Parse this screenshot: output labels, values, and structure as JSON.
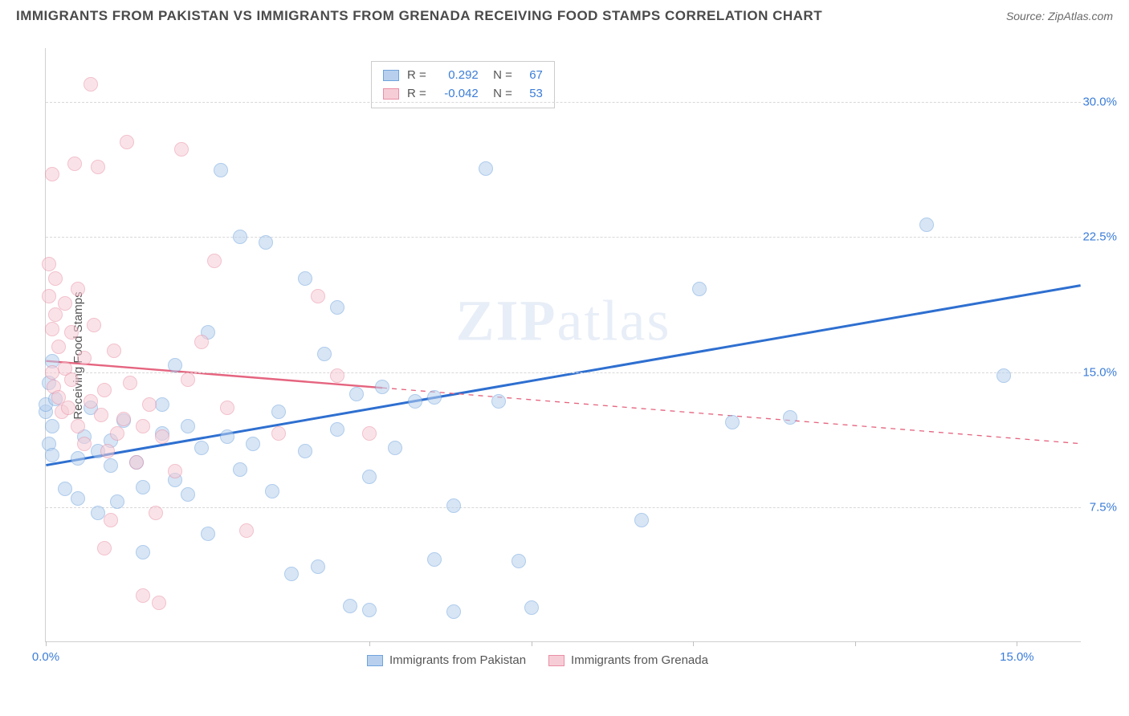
{
  "header": {
    "title": "IMMIGRANTS FROM PAKISTAN VS IMMIGRANTS FROM GRENADA RECEIVING FOOD STAMPS CORRELATION CHART",
    "source_prefix": "Source: ",
    "source_name": "ZipAtlas.com"
  },
  "watermark": {
    "prefix": "ZIP",
    "suffix": "atlas"
  },
  "chart": {
    "type": "scatter",
    "background_color": "#ffffff",
    "grid_color": "#d8d8d8",
    "xlim": [
      0,
      16
    ],
    "ylim": [
      0,
      33
    ],
    "x_ticks": [
      0,
      5,
      7.5,
      10,
      12.5,
      15
    ],
    "x_tick_labels": {
      "0": "0.0%",
      "15": "15.0%"
    },
    "x_tick_color": "#3b7dd8",
    "y_ticks": [
      7.5,
      15.0,
      22.5,
      30.0
    ],
    "y_tick_labels": [
      "7.5%",
      "15.0%",
      "22.5%",
      "30.0%"
    ],
    "y_tick_color": "#3b7dd8",
    "y_axis_label": "Receiving Food Stamps",
    "marker_radius": 9,
    "marker_opacity": 0.55,
    "marker_stroke_width": 1.2,
    "series": [
      {
        "name": "Immigrants from Pakistan",
        "fill": "#b8d0ee",
        "stroke": "#6fa3dd",
        "line_color": "#2e6fd0",
        "line_width": 3,
        "R": "0.292",
        "N": "67",
        "regression": {
          "x1": 0,
          "y1": 9.8,
          "x2": 16,
          "y2": 19.8,
          "solid_until_x": 16
        },
        "points": [
          [
            0.0,
            12.8
          ],
          [
            0.0,
            13.2
          ],
          [
            0.05,
            14.4
          ],
          [
            0.05,
            11.0
          ],
          [
            0.1,
            12.0
          ],
          [
            0.1,
            10.4
          ],
          [
            0.1,
            15.6
          ],
          [
            0.3,
            8.5
          ],
          [
            0.5,
            10.2
          ],
          [
            0.5,
            8.0
          ],
          [
            0.6,
            11.4
          ],
          [
            0.7,
            13.0
          ],
          [
            0.8,
            7.2
          ],
          [
            0.8,
            10.6
          ],
          [
            1.0,
            9.8
          ],
          [
            1.0,
            11.2
          ],
          [
            1.1,
            7.8
          ],
          [
            1.2,
            12.3
          ],
          [
            1.4,
            10.0
          ],
          [
            1.5,
            5.0
          ],
          [
            1.5,
            8.6
          ],
          [
            1.8,
            11.6
          ],
          [
            1.8,
            13.2
          ],
          [
            2.0,
            9.0
          ],
          [
            2.0,
            15.4
          ],
          [
            2.2,
            12.0
          ],
          [
            2.2,
            8.2
          ],
          [
            2.4,
            10.8
          ],
          [
            2.5,
            6.0
          ],
          [
            2.5,
            17.2
          ],
          [
            2.7,
            26.2
          ],
          [
            2.8,
            11.4
          ],
          [
            3.0,
            9.6
          ],
          [
            3.0,
            22.5
          ],
          [
            3.2,
            11.0
          ],
          [
            3.4,
            22.2
          ],
          [
            3.5,
            8.4
          ],
          [
            3.6,
            12.8
          ],
          [
            3.8,
            3.8
          ],
          [
            4.0,
            10.6
          ],
          [
            4.0,
            20.2
          ],
          [
            4.2,
            4.2
          ],
          [
            4.3,
            16.0
          ],
          [
            4.5,
            18.6
          ],
          [
            4.5,
            11.8
          ],
          [
            4.7,
            2.0
          ],
          [
            4.8,
            13.8
          ],
          [
            5.0,
            9.2
          ],
          [
            5.0,
            1.8
          ],
          [
            5.2,
            14.2
          ],
          [
            5.4,
            10.8
          ],
          [
            5.7,
            13.4
          ],
          [
            6.0,
            13.6
          ],
          [
            6.0,
            4.6
          ],
          [
            6.3,
            7.6
          ],
          [
            6.3,
            1.7
          ],
          [
            6.8,
            26.3
          ],
          [
            7.0,
            13.4
          ],
          [
            7.3,
            4.5
          ],
          [
            7.5,
            1.9
          ],
          [
            9.2,
            6.8
          ],
          [
            10.1,
            19.6
          ],
          [
            10.6,
            12.2
          ],
          [
            11.5,
            12.5
          ],
          [
            13.6,
            23.2
          ],
          [
            14.8,
            14.8
          ],
          [
            0.15,
            13.5
          ]
        ]
      },
      {
        "name": "Immigrants from Grenada",
        "fill": "#f6cdd6",
        "stroke": "#e98fa6",
        "line_color": "#e5647f",
        "line_width": 2.4,
        "R": "-0.042",
        "N": "53",
        "regression": {
          "x1": 0,
          "y1": 15.6,
          "x2": 16,
          "y2": 11.0,
          "solid_until_x": 5.2
        },
        "points": [
          [
            0.05,
            21.0
          ],
          [
            0.05,
            19.2
          ],
          [
            0.1,
            17.4
          ],
          [
            0.1,
            26.0
          ],
          [
            0.1,
            15.0
          ],
          [
            0.12,
            14.2
          ],
          [
            0.15,
            18.2
          ],
          [
            0.15,
            20.2
          ],
          [
            0.2,
            13.6
          ],
          [
            0.2,
            16.4
          ],
          [
            0.25,
            12.8
          ],
          [
            0.3,
            18.8
          ],
          [
            0.3,
            15.2
          ],
          [
            0.35,
            13.0
          ],
          [
            0.4,
            17.2
          ],
          [
            0.4,
            14.6
          ],
          [
            0.45,
            26.6
          ],
          [
            0.5,
            19.6
          ],
          [
            0.5,
            12.0
          ],
          [
            0.6,
            11.0
          ],
          [
            0.6,
            15.8
          ],
          [
            0.7,
            13.4
          ],
          [
            0.7,
            31.0
          ],
          [
            0.75,
            17.6
          ],
          [
            0.8,
            26.4
          ],
          [
            0.85,
            12.6
          ],
          [
            0.9,
            14.0
          ],
          [
            0.9,
            5.2
          ],
          [
            0.95,
            10.6
          ],
          [
            1.0,
            6.8
          ],
          [
            1.05,
            16.2
          ],
          [
            1.1,
            11.6
          ],
          [
            1.2,
            12.4
          ],
          [
            1.25,
            27.8
          ],
          [
            1.3,
            14.4
          ],
          [
            1.4,
            10.0
          ],
          [
            1.5,
            12.0
          ],
          [
            1.5,
            2.6
          ],
          [
            1.6,
            13.2
          ],
          [
            1.7,
            7.2
          ],
          [
            1.75,
            2.2
          ],
          [
            1.8,
            11.4
          ],
          [
            2.0,
            9.5
          ],
          [
            2.1,
            27.4
          ],
          [
            2.2,
            14.6
          ],
          [
            2.4,
            16.7
          ],
          [
            2.6,
            21.2
          ],
          [
            2.8,
            13.0
          ],
          [
            3.1,
            6.2
          ],
          [
            3.6,
            11.6
          ],
          [
            4.2,
            19.2
          ],
          [
            4.5,
            14.8
          ],
          [
            5.0,
            11.6
          ]
        ]
      }
    ]
  }
}
